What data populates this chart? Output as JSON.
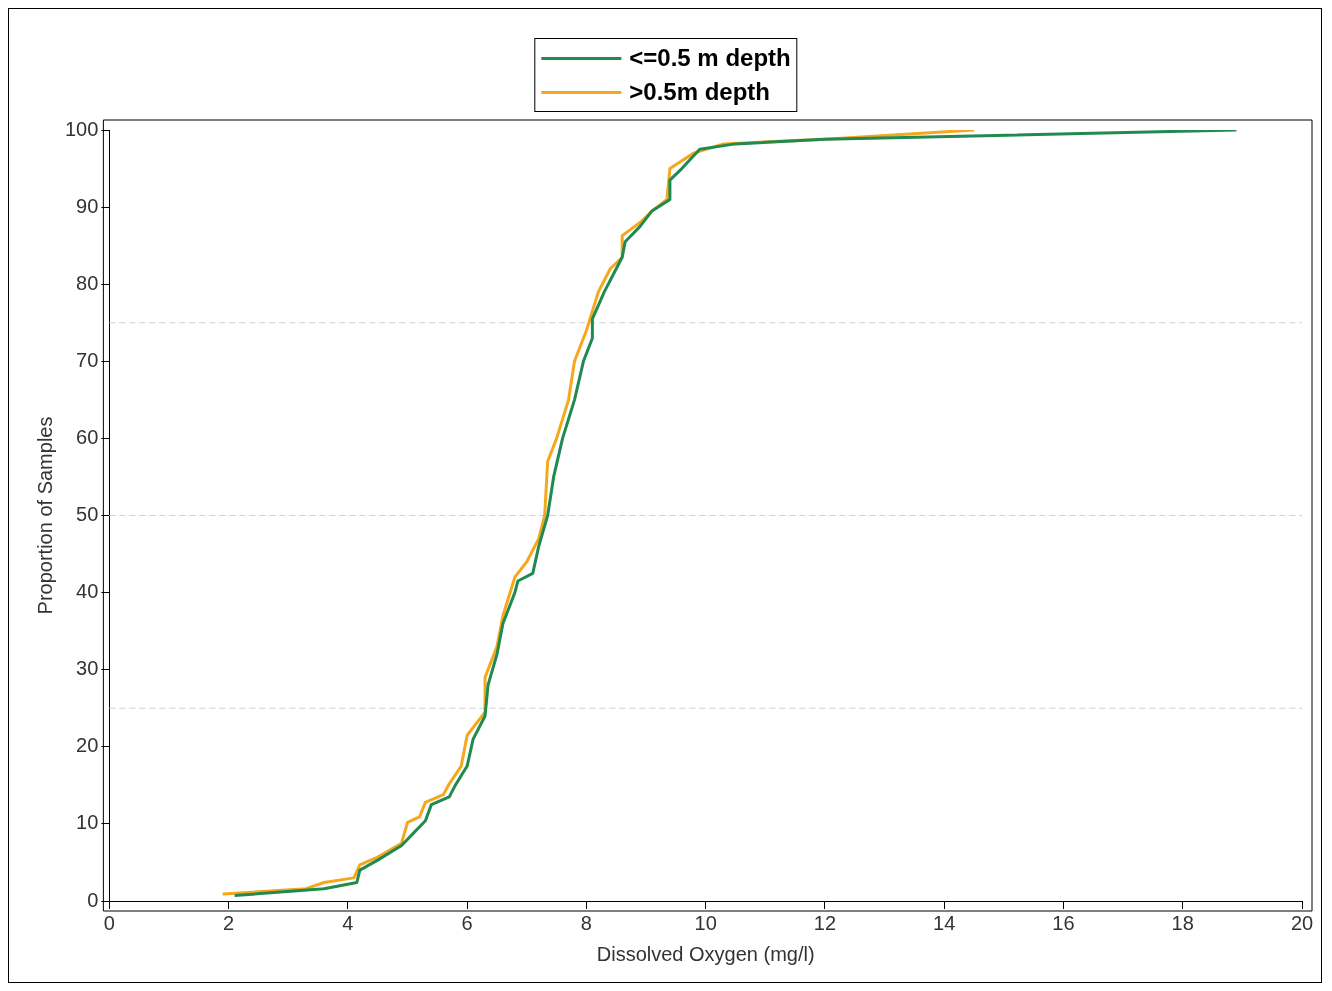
{
  "chart_data": {
    "type": "line",
    "xlabel": "Dissolved Oxygen (mg/l)",
    "ylabel": "Proportion of Samples",
    "xlim": [
      0,
      20
    ],
    "xticks": [
      0,
      2,
      4,
      6,
      8,
      10,
      12,
      14,
      16,
      18,
      20
    ],
    "ylim": [
      0,
      100
    ],
    "yticks": [
      0,
      10,
      20,
      30,
      40,
      50,
      60,
      70,
      80,
      90,
      100
    ],
    "grid": false,
    "legend": "top",
    "line_style": "solid",
    "marker": "none",
    "ref_lines": [
      {
        "axis": "y",
        "value": 25,
        "color": "#d0d0d0",
        "line_style": "dashed"
      },
      {
        "axis": "y",
        "value": 50,
        "color": "#d0d0d0",
        "line_style": "dashed"
      },
      {
        "axis": "y",
        "value": 75,
        "color": "#d0d0d0",
        "line_style": "dashed"
      }
    ],
    "series": [
      {
        "name": "<=0.5 m depth",
        "color": "#208a50",
        "x": [
          2.1,
          3.6,
          4.15,
          4.2,
          4.5,
          4.9,
          5.1,
          5.3,
          5.4,
          5.7,
          5.8,
          6.0,
          6.1,
          6.3,
          6.35,
          6.5,
          6.6,
          6.8,
          6.85,
          7.1,
          7.2,
          7.35,
          7.45,
          7.6,
          7.8,
          7.95,
          8.1,
          8.1,
          8.3,
          8.5,
          8.6,
          8.65,
          8.9,
          9.1,
          9.4,
          9.4,
          9.6,
          9.9,
          10.5,
          12,
          18.9
        ],
        "values": [
          0.7,
          1.6,
          2.4,
          4,
          5.3,
          7.2,
          8.8,
          10.4,
          12.5,
          13.5,
          15,
          17.5,
          21,
          24,
          28,
          32,
          36,
          40,
          41.5,
          42.5,
          46,
          50,
          55,
          60,
          65,
          70,
          73,
          75.5,
          79,
          82,
          83.5,
          85.5,
          87.5,
          89.5,
          91,
          93.5,
          95,
          97.5,
          98.2,
          98.8,
          100
        ]
      },
      {
        "name": ">0.5m depth",
        "color": "#f5a81c",
        "x": [
          1.9,
          3.3,
          3.6,
          4.1,
          4.2,
          4.5,
          4.9,
          5.0,
          5.2,
          5.3,
          5.6,
          5.7,
          5.9,
          6.0,
          6.3,
          6.3,
          6.5,
          6.6,
          6.8,
          7.0,
          7.2,
          7.3,
          7.35,
          7.5,
          7.7,
          7.8,
          8.0,
          8.2,
          8.4,
          8.6,
          8.6,
          8.9,
          9.1,
          9.35,
          9.4,
          9.8,
          10.3,
          12,
          14.5
        ],
        "values": [
          0.9,
          1.6,
          2.4,
          3.0,
          4.7,
          5.7,
          7.5,
          10.2,
          10.9,
          12.8,
          13.8,
          15.2,
          17.5,
          21.5,
          24.5,
          29,
          33,
          37,
          42,
          44,
          47,
          50,
          57,
          60,
          65,
          70,
          74,
          79,
          82,
          83.5,
          86.3,
          88,
          89.5,
          91,
          95,
          97,
          98.2,
          98.8,
          100
        ]
      }
    ]
  }
}
